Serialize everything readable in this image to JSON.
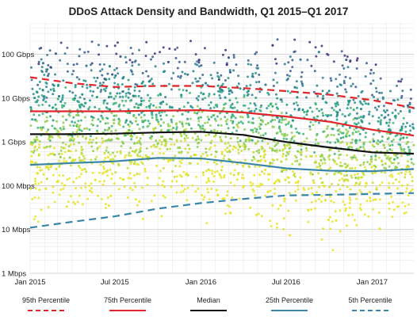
{
  "chart_data": {
    "type": "scatter",
    "title": "DDoS Attack Density and Bandwidth, Q1 2015–Q1 2017",
    "xlabel": "",
    "ylabel": "",
    "x_range": [
      "2015-01-01",
      "2017-03-31"
    ],
    "x_tick_labels": [
      {
        "date": "2015-01-01",
        "label": "Jan 2015"
      },
      {
        "date": "2015-07-01",
        "label": "Jul 2015"
      },
      {
        "date": "2016-01-01",
        "label": "Jan 2016"
      },
      {
        "date": "2016-07-01",
        "label": "Jul 2016"
      },
      {
        "date": "2017-01-01",
        "label": "Jan 2017"
      }
    ],
    "y_scale": "log",
    "y_unit": "Mbps",
    "y_range": [
      1,
      500000
    ],
    "y_tick_labels": [
      {
        "value": 1,
        "label": "1 Mbps"
      },
      {
        "value": 10,
        "label": "10 Mbps"
      },
      {
        "value": 100,
        "label": "100 Mbps"
      },
      {
        "value": 1000,
        "label": "1 Gbps"
      },
      {
        "value": 10000,
        "label": "10 Gbps"
      },
      {
        "value": 100000,
        "label": "100 Gbps"
      }
    ],
    "grid": true,
    "legend_position": "bottom",
    "series": [
      {
        "name": "95th Percentile",
        "color": "#e0262b",
        "dash": "dashed",
        "points": [
          [
            "2015-01-01",
            30000
          ],
          [
            "2015-04-01",
            22000
          ],
          [
            "2015-07-01",
            18000
          ],
          [
            "2015-10-01",
            19000
          ],
          [
            "2016-01-01",
            19000
          ],
          [
            "2016-04-01",
            17000
          ],
          [
            "2016-07-01",
            14500
          ],
          [
            "2016-10-01",
            12000
          ],
          [
            "2017-01-01",
            9000
          ],
          [
            "2017-03-31",
            6000
          ]
        ]
      },
      {
        "name": "75th Percentile",
        "color": "#e0262b",
        "dash": "solid",
        "points": [
          [
            "2015-01-01",
            5000
          ],
          [
            "2015-04-01",
            5000
          ],
          [
            "2015-07-01",
            5000
          ],
          [
            "2015-10-01",
            5200
          ],
          [
            "2016-01-01",
            5300
          ],
          [
            "2016-04-01",
            4700
          ],
          [
            "2016-07-01",
            3800
          ],
          [
            "2016-10-01",
            2900
          ],
          [
            "2017-01-01",
            1900
          ],
          [
            "2017-03-31",
            1400
          ]
        ]
      },
      {
        "name": "Median",
        "color": "#111111",
        "dash": "solid",
        "points": [
          [
            "2015-01-01",
            1500
          ],
          [
            "2015-04-01",
            1500
          ],
          [
            "2015-07-01",
            1550
          ],
          [
            "2015-10-01",
            1650
          ],
          [
            "2016-01-01",
            1700
          ],
          [
            "2016-04-01",
            1450
          ],
          [
            "2016-07-01",
            1000
          ],
          [
            "2016-10-01",
            750
          ],
          [
            "2017-01-01",
            580
          ],
          [
            "2017-03-31",
            540
          ]
        ]
      },
      {
        "name": "25th Percentile",
        "color": "#3a86a8",
        "dash": "solid",
        "points": [
          [
            "2015-01-01",
            300
          ],
          [
            "2015-04-01",
            330
          ],
          [
            "2015-07-01",
            360
          ],
          [
            "2015-10-01",
            430
          ],
          [
            "2016-01-01",
            420
          ],
          [
            "2016-04-01",
            330
          ],
          [
            "2016-07-01",
            250
          ],
          [
            "2016-10-01",
            220
          ],
          [
            "2017-01-01",
            215
          ],
          [
            "2017-03-31",
            240
          ]
        ]
      },
      {
        "name": "5th Percentile",
        "color": "#3a86a8",
        "dash": "dashed",
        "points": [
          [
            "2015-01-01",
            11
          ],
          [
            "2015-04-01",
            15
          ],
          [
            "2015-07-01",
            20
          ],
          [
            "2015-10-01",
            30
          ],
          [
            "2016-01-01",
            40
          ],
          [
            "2016-04-01",
            50
          ],
          [
            "2016-07-01",
            60
          ],
          [
            "2016-10-01",
            62
          ],
          [
            "2017-01-01",
            65
          ],
          [
            "2017-03-31",
            68
          ]
        ]
      }
    ]
  }
}
